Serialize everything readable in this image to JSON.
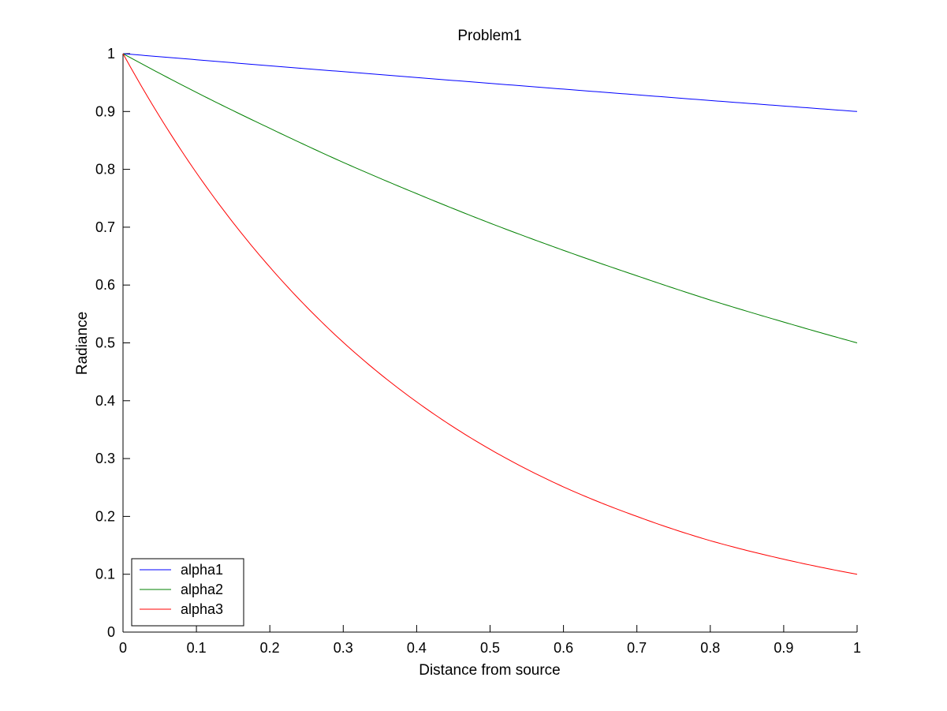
{
  "chart_data": {
    "type": "line",
    "title": "Problem1",
    "xlabel": "Distance from source",
    "ylabel": "Radiance",
    "xlim": [
      0,
      1
    ],
    "ylim": [
      0,
      1
    ],
    "grid": false,
    "legend_position": "bottom-left",
    "x_ticks": [
      "0",
      "0.1",
      "0.2",
      "0.3",
      "0.4",
      "0.5",
      "0.6",
      "0.7",
      "0.8",
      "0.9",
      "1"
    ],
    "y_ticks": [
      "0",
      "0.1",
      "0.2",
      "0.3",
      "0.4",
      "0.5",
      "0.6",
      "0.7",
      "0.8",
      "0.9",
      "1"
    ],
    "x": [
      0,
      0.1,
      0.2,
      0.3,
      0.4,
      0.5,
      0.6,
      0.7,
      0.8,
      0.9,
      1
    ],
    "series": [
      {
        "name": "alpha1",
        "color": "#0000ff",
        "values": [
          1,
          0.9895,
          0.979,
          0.9689,
          0.9587,
          0.9487,
          0.9387,
          0.9289,
          0.919,
          0.9095,
          0.9
        ]
      },
      {
        "name": "alpha2",
        "color": "#008000",
        "values": [
          1,
          0.933,
          0.871,
          0.812,
          0.758,
          0.707,
          0.66,
          0.616,
          0.574,
          0.536,
          0.5
        ]
      },
      {
        "name": "alpha3",
        "color": "#ff0000",
        "values": [
          1,
          0.794,
          0.631,
          0.501,
          0.398,
          0.316,
          0.251,
          0.2,
          0.158,
          0.126,
          0.1
        ]
      }
    ]
  }
}
